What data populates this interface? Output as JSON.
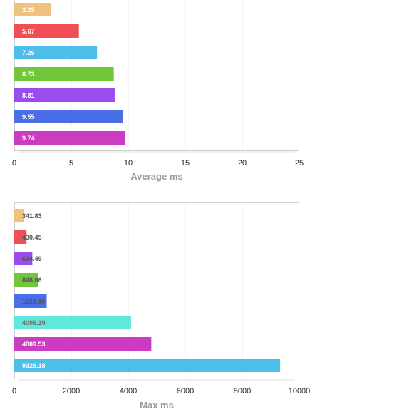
{
  "chart_data": [
    {
      "type": "bar",
      "orientation": "horizontal",
      "xlabel": "Average ms",
      "ylabel": "",
      "xlim": [
        0,
        25
      ],
      "xticks": [
        "0",
        "5",
        "10",
        "15",
        "20",
        "25"
      ],
      "grid": true,
      "values": [
        3.25,
        5.67,
        7.26,
        8.73,
        8.81,
        9.55,
        9.74
      ],
      "labels": [
        "3.25",
        "5.67",
        "7.26",
        "8.73",
        "8.81",
        "9.55",
        "9.74"
      ],
      "colors": [
        "#f0c27e",
        "#ef4e55",
        "#4dbde9",
        "#72c63a",
        "#9a4cee",
        "#4a6ee8",
        "#cc3cc1"
      ],
      "label_colors": [
        "#ffffff",
        "#ffffff",
        "#ffffff",
        "#ffffff",
        "#ffffff",
        "#ffffff",
        "#ffffff"
      ]
    },
    {
      "type": "bar",
      "orientation": "horizontal",
      "xlabel": "Max ms",
      "ylabel": "",
      "xlim": [
        0,
        10000
      ],
      "xticks": [
        "0",
        "2000",
        "4000",
        "6000",
        "8000",
        "10000"
      ],
      "grid": true,
      "values": [
        341.83,
        430.45,
        634.49,
        848.06,
        1138.3,
        4098.19,
        4809.53,
        9328.18
      ],
      "labels": [
        "341.83",
        "430.45",
        "634.49",
        "848.06",
        "1138.30",
        "4098.19",
        "4809.53",
        "9328.18"
      ],
      "colors": [
        "#f0c27e",
        "#ef4e55",
        "#9a4cee",
        "#72c63a",
        "#4a6ee8",
        "#5fe8dc",
        "#cc3cc1",
        "#4dbde9"
      ],
      "label_colors": [
        "#555555",
        "#555555",
        "#555555",
        "#555555",
        "#555555",
        "#7a6a6a",
        "#ffffff",
        "#ffffff"
      ]
    }
  ]
}
